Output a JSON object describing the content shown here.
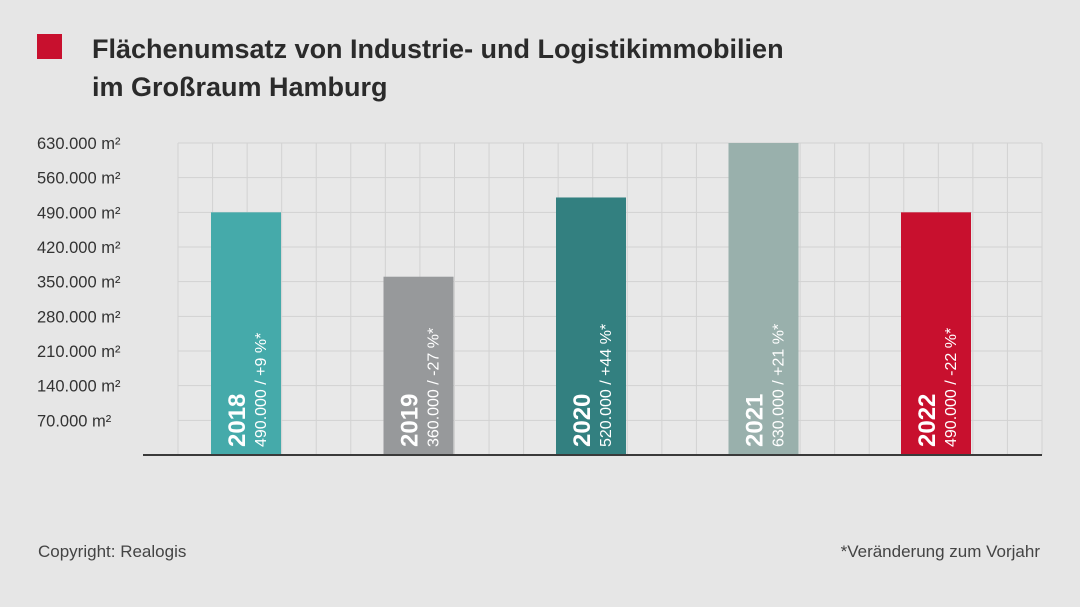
{
  "title_line1": "Flächenumsatz von Industrie- und Logistikimmobilien",
  "title_line2": "im Großraum Hamburg",
  "title_marker_color": "#c8102e",
  "footer": {
    "copyright": "Copyright: Realogis",
    "note": "*Veränderung zum Vorjahr"
  },
  "chart_data": {
    "type": "bar",
    "title": "Flächenumsatz von Industrie- und Logistikimmobilien im Großraum Hamburg",
    "categories": [
      "2018",
      "2019",
      "2020",
      "2021",
      "2022"
    ],
    "values": [
      490000,
      360000,
      520000,
      630000,
      490000
    ],
    "bar_labels": [
      "490.000 / +9 %*",
      "360.000 / -27 %*",
      "520.000 / +44 %*",
      "630.000 / +21 %*",
      "490.000 / -22 %*"
    ],
    "colors": [
      "#45aaaa",
      "#97999b",
      "#338080",
      "#99b0ac",
      "#c8102e"
    ],
    "ylim": [
      0,
      630000
    ],
    "yticks": [
      70000,
      140000,
      210000,
      280000,
      350000,
      420000,
      490000,
      560000,
      630000
    ],
    "ytick_labels": [
      "70.000 m²",
      "140.000 m²",
      "210.000 m²",
      "280.000 m²",
      "350.000 m²",
      "420.000 m²",
      "490.000 m²",
      "560.000 m²",
      "630.000 m²"
    ],
    "grid": true
  }
}
